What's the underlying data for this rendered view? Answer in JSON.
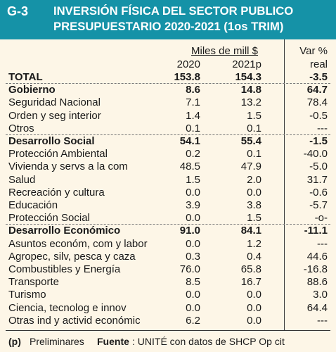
{
  "header": {
    "graph_id": "G-3",
    "title_line1": "INVERSIÓN FÍSICA DEL SECTOR PUBLICO",
    "title_line2": "PRESUPUESTARIO 2020-2021 (1os TRIM)"
  },
  "columns": {
    "group_label": "Miles de mill $",
    "var_label": "Var %",
    "year1": "2020",
    "year2": "2021p",
    "var_sub": "real"
  },
  "chart_data": {
    "type": "table",
    "columns": [
      "2020",
      "2021p",
      "Var % real"
    ],
    "rows": [
      {
        "label": "TOTAL",
        "v2020": "153.8",
        "v2021": "154.3",
        "var": "-3.5",
        "bold": true
      },
      {
        "label": "Gobierno",
        "v2020": "8.6",
        "v2021": "14.8",
        "var": "64.7",
        "bold": true
      },
      {
        "label": "Seguridad Nacional",
        "v2020": "7.1",
        "v2021": "13.2",
        "var": "78.4"
      },
      {
        "label": "Orden y seg interior",
        "v2020": "1.4",
        "v2021": "1.5",
        "var": "-0.5"
      },
      {
        "label": "Otros",
        "v2020": "0.1",
        "v2021": "0.1",
        "var": "---"
      },
      {
        "label": "Desarrollo Social",
        "v2020": "54.1",
        "v2021": "55.4",
        "var": "-1.5",
        "bold": true
      },
      {
        "label": "Protección Ambiental",
        "v2020": "0.2",
        "v2021": "0.1",
        "var": "-40.0"
      },
      {
        "label": "Vivienda y servs a la com",
        "v2020": "48.5",
        "v2021": "47.9",
        "var": "-5.0"
      },
      {
        "label": "Salud",
        "v2020": "1.5",
        "v2021": "2.0",
        "var": "31.7"
      },
      {
        "label": "Recreación y cultura",
        "v2020": "0.0",
        "v2021": "0.0",
        "var": "-0.6"
      },
      {
        "label": "Educación",
        "v2020": "3.9",
        "v2021": "3.8",
        "var": "-5.7"
      },
      {
        "label": "Protección Social",
        "v2020": "0.0",
        "v2021": "1.5",
        "var": "-o-"
      },
      {
        "label": "Desarrollo Económico",
        "v2020": "91.0",
        "v2021": "84.1",
        "var": "-11.1",
        "bold": true
      },
      {
        "label": "Asuntos económ, com y labor",
        "v2020": "0.0",
        "v2021": "1.2",
        "var": "---"
      },
      {
        "label": "Agropec, silv, pesca y caza",
        "v2020": "0.3",
        "v2021": "0.4",
        "var": "44.6"
      },
      {
        "label": "Combustibles y Energía",
        "v2020": "76.0",
        "v2021": "65.8",
        "var": "-16.8"
      },
      {
        "label": "Transporte",
        "v2020": "8.5",
        "v2021": "16.7",
        "var": "88.6"
      },
      {
        "label": "Turismo",
        "v2020": "0.0",
        "v2021": "0.0",
        "var": "3.0"
      },
      {
        "label": "Ciencia, tecnolog e innov",
        "v2020": "0.0",
        "v2021": "0.0",
        "var": "64.4"
      },
      {
        "label": "Otras ind y activid económic",
        "v2020": "6.2",
        "v2021": "0.0",
        "var": "---"
      }
    ]
  },
  "footer": {
    "p_marker": "(p)",
    "p_text": "Preliminares",
    "source_label": "Fuente",
    "source_text": ": UNITÉ con datos de SHCP Op cit"
  },
  "colors": {
    "header_bg": "#1592a7",
    "body_bg": "#fdf6e7"
  }
}
